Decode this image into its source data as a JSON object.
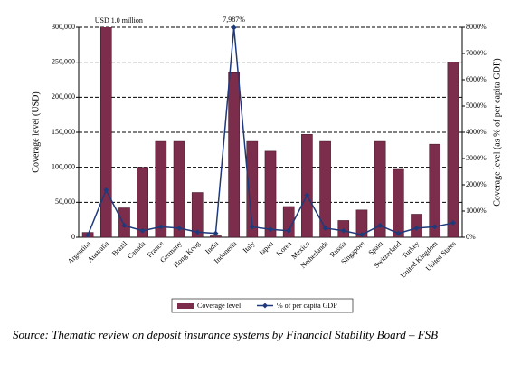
{
  "chart_data": {
    "type": "bar_line",
    "y_label": "Coverage level (USD)",
    "y2_label": "Coverage level (as % of per capita GDP)",
    "categories": [
      "Argentina",
      "Australia",
      "Brazil",
      "Canada",
      "France",
      "Germany",
      "Hong Kong",
      "India",
      "Indonesia",
      "Italy",
      "Japan",
      "Korea",
      "Mexico",
      "Netherlands",
      "Russia",
      "Singapore",
      "Spain",
      "Switzerland",
      "Turkey",
      "United Kingdom",
      "United States"
    ],
    "series": [
      {
        "name": "Coverage level",
        "type": "bar",
        "color": "#7b2d4b",
        "values": [
          7000,
          1000000,
          42000,
          100000,
          137000,
          137000,
          64000,
          2000,
          235000,
          137000,
          123000,
          44000,
          147000,
          137000,
          24000,
          39000,
          137000,
          97000,
          33000,
          133000,
          250000
        ],
        "value_labels": [
          null,
          "USD 1.0 million",
          null,
          null,
          null,
          null,
          null,
          null,
          null,
          null,
          null,
          null,
          null,
          null,
          null,
          null,
          null,
          null,
          null,
          null,
          null
        ]
      },
      {
        "name": "% of per capita GDP",
        "type": "line",
        "axis": "y2",
        "color": "#1f3a7a",
        "values": [
          80,
          1800,
          450,
          250,
          400,
          350,
          200,
          150,
          7987,
          400,
          300,
          250,
          1600,
          350,
          250,
          100,
          450,
          150,
          350,
          400,
          550
        ],
        "value_labels": [
          null,
          null,
          null,
          null,
          null,
          null,
          null,
          null,
          "7,987%",
          null,
          null,
          null,
          null,
          null,
          null,
          null,
          null,
          null,
          null,
          null,
          null
        ]
      }
    ],
    "ylim": [
      0,
      300000
    ],
    "yticks": [
      0,
      {
        "value": 50000,
        "label": "50,000"
      },
      {
        "value": 100000,
        "label": "100,000"
      },
      {
        "value": 150000,
        "label": "150,000"
      },
      {
        "value": 200000,
        "label": "200,000"
      },
      {
        "value": 250000,
        "label": "250,000"
      },
      {
        "value": 300000,
        "label": "300,000"
      }
    ],
    "y2lim": [
      0,
      8000
    ],
    "y2ticks": [
      {
        "value": 0,
        "label": "0%"
      },
      {
        "value": 1000,
        "label": "1000%"
      },
      {
        "value": 2000,
        "label": "2000%"
      },
      {
        "value": 3000,
        "label": "3000%"
      },
      {
        "value": 4000,
        "label": "4000%"
      },
      {
        "value": 5000,
        "label": "5000%"
      },
      {
        "value": 6000,
        "label": "6000%"
      },
      {
        "value": 7000,
        "label": "7000%"
      },
      {
        "value": 8000,
        "label": "8000%"
      }
    ],
    "grid": true
  },
  "source": "Source: Thematic review on deposit insurance systems by Financial Stability Board – FSB"
}
